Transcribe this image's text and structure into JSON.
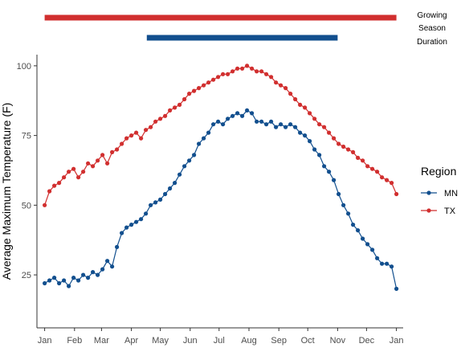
{
  "chart_data": {
    "type": "line",
    "ylabel": "Average Maximum Temperature (F)",
    "xlabel": "",
    "x_tick_labels": [
      "Jan",
      "Feb",
      "Mar",
      "Apr",
      "May",
      "Jun",
      "Jul",
      "Aug",
      "Sep",
      "Oct",
      "Nov",
      "Dec",
      "Jan"
    ],
    "y_ticks": [
      25,
      50,
      75,
      100
    ],
    "ylim": [
      6,
      104
    ],
    "xlim_day": [
      -8,
      372
    ],
    "grid": false,
    "legend": {
      "title": "Region",
      "placement": "right"
    },
    "annotation": {
      "lines": [
        "Growing",
        "Season",
        "Duration"
      ]
    },
    "growing_season_bars": [
      {
        "series": "TX",
        "start_day": 0,
        "end_day": 365,
        "color": "#d12f2f"
      },
      {
        "series": "MN",
        "start_day": 106,
        "end_day": 304,
        "color": "#124f8e"
      }
    ],
    "series": [
      {
        "name": "MN",
        "color": "#124f8e",
        "x": [
          0,
          5,
          10,
          15,
          20,
          25,
          30,
          35,
          40,
          45,
          50,
          55,
          60,
          65,
          70,
          75,
          80,
          85,
          90,
          95,
          100,
          105,
          110,
          115,
          120,
          125,
          130,
          135,
          140,
          145,
          150,
          155,
          160,
          165,
          170,
          175,
          180,
          185,
          190,
          195,
          200,
          205,
          210,
          215,
          220,
          225,
          230,
          235,
          240,
          245,
          250,
          255,
          260,
          265,
          270,
          275,
          280,
          285,
          290,
          295,
          300,
          305,
          310,
          315,
          320,
          325,
          330,
          335,
          340,
          345,
          350,
          355,
          360,
          365
        ],
        "values": [
          22,
          23,
          24,
          22,
          23,
          21,
          24,
          23,
          25,
          24,
          26,
          25,
          27,
          30,
          28,
          35,
          40,
          42,
          43,
          44,
          45,
          47,
          50,
          51,
          52,
          54,
          56,
          58,
          61,
          64,
          66,
          68,
          72,
          74,
          76,
          79,
          80,
          79,
          81,
          82,
          83,
          82,
          84,
          83,
          80,
          80,
          79,
          80,
          78,
          79,
          78,
          79,
          78,
          76,
          75,
          73,
          70,
          68,
          64,
          62,
          59,
          54,
          50,
          47,
          43,
          41,
          38,
          36,
          34,
          31,
          29,
          29,
          28,
          20
        ]
      },
      {
        "name": "TX",
        "color": "#d12f2f",
        "x": [
          0,
          5,
          10,
          15,
          20,
          25,
          30,
          35,
          40,
          45,
          50,
          55,
          60,
          65,
          70,
          75,
          80,
          85,
          90,
          95,
          100,
          105,
          110,
          115,
          120,
          125,
          130,
          135,
          140,
          145,
          150,
          155,
          160,
          165,
          170,
          175,
          180,
          185,
          190,
          195,
          200,
          205,
          210,
          215,
          220,
          225,
          230,
          235,
          240,
          245,
          250,
          255,
          260,
          265,
          270,
          275,
          280,
          285,
          290,
          295,
          300,
          305,
          310,
          315,
          320,
          325,
          330,
          335,
          340,
          345,
          350,
          355,
          360,
          365
        ],
        "values": [
          50,
          55,
          57,
          58,
          60,
          62,
          63,
          60,
          62,
          65,
          64,
          66,
          68,
          65,
          69,
          70,
          72,
          74,
          75,
          76,
          74,
          77,
          78,
          80,
          81,
          82,
          84,
          85,
          86,
          88,
          90,
          91,
          92,
          93,
          94,
          95,
          96,
          97,
          97,
          98,
          99,
          99,
          100,
          99,
          98,
          98,
          97,
          96,
          94,
          93,
          92,
          90,
          88,
          86,
          85,
          83,
          81,
          79,
          78,
          76,
          74,
          72,
          71,
          70,
          69,
          67,
          66,
          64,
          63,
          62,
          60,
          59,
          58,
          54
        ]
      }
    ]
  }
}
